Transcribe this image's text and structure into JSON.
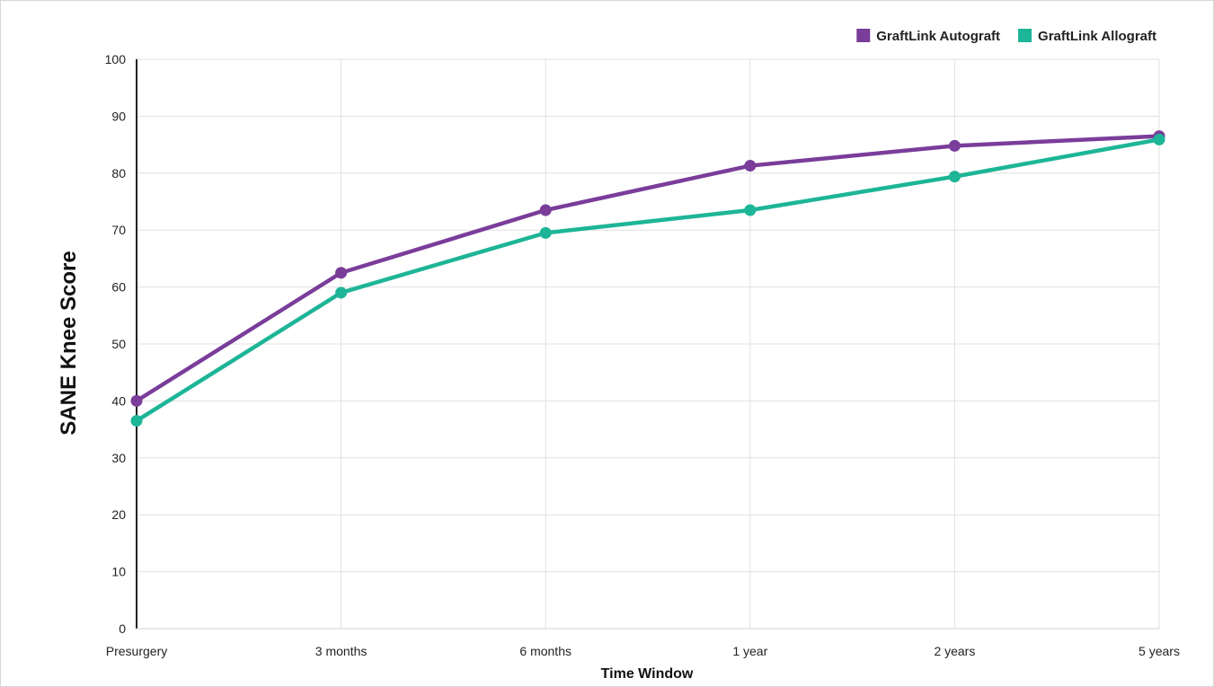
{
  "chart_data": {
    "type": "line",
    "title": "",
    "xlabel": "Time Window",
    "ylabel": "SANE Knee Score",
    "categories": [
      "Presurgery",
      "3 months",
      "6 months",
      "1 year",
      "2 years",
      "5 years"
    ],
    "ylim": [
      0,
      100
    ],
    "yticks": [
      0,
      10,
      20,
      30,
      40,
      50,
      60,
      70,
      80,
      90,
      100
    ],
    "grid": true,
    "legend_position": "top-right",
    "series": [
      {
        "name": "GraftLink Autograft",
        "color": "#7a3d9a",
        "values": [
          40,
          62.5,
          73.5,
          81.3,
          84.8,
          86.5
        ]
      },
      {
        "name": "GraftLink Allograft",
        "color": "#1db597",
        "values": [
          36.5,
          59,
          69.5,
          73.5,
          79.4,
          85.9
        ]
      }
    ]
  }
}
